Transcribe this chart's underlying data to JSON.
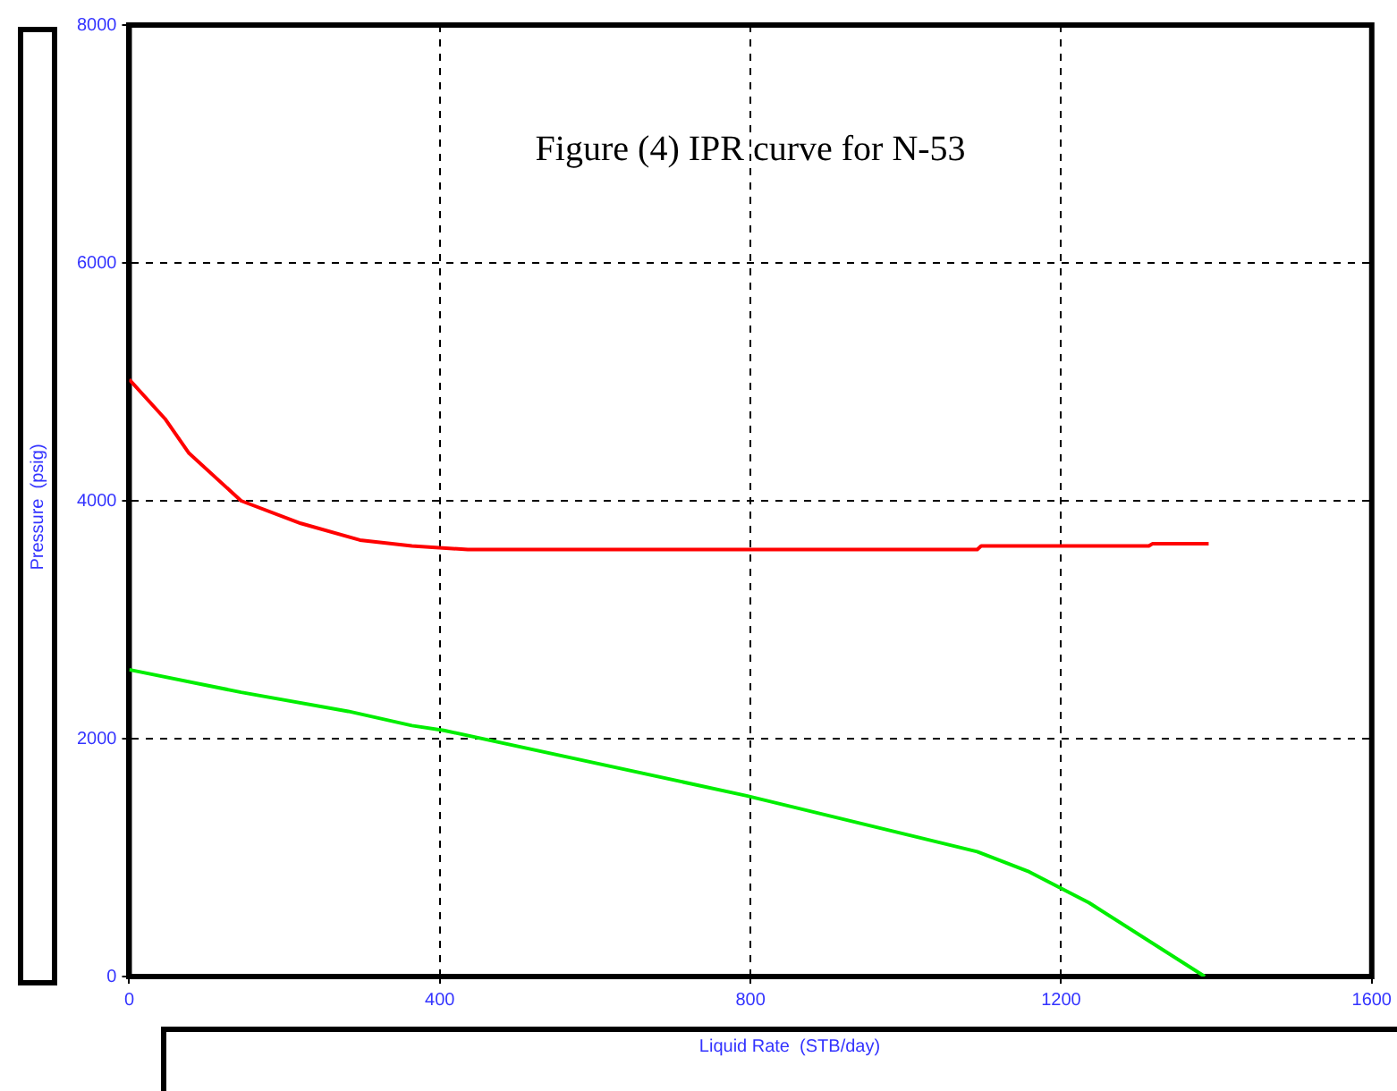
{
  "chart_data": {
    "type": "line",
    "title": "Figure (4) IPR curve for N-53",
    "xlabel": "Liquid Rate  (STB/day)",
    "ylabel": "Pressure  (psig)",
    "xlim": [
      0,
      1600
    ],
    "xticks": [
      0,
      400,
      800,
      1200,
      1600
    ],
    "ylim": [
      0,
      8000
    ],
    "yticks": [
      0,
      2000,
      4000,
      6000,
      8000
    ],
    "grid": true,
    "legend": false,
    "marker": "none",
    "line_style": "solid",
    "series": [
      {
        "color": "#ff0000",
        "x": [
          0,
          46,
          77,
          144,
          221,
          297,
          364,
          436,
          1092,
          1097,
          1313,
          1318,
          1390
        ],
        "values": [
          5020,
          4690,
          4400,
          4000,
          3810,
          3670,
          3620,
          3590,
          3590,
          3620,
          3620,
          3640,
          3640
        ]
      },
      {
        "color": "#00ee00",
        "x": [
          0,
          144,
          282,
          364,
          405,
          795,
          1092,
          1159,
          1236,
          1385
        ],
        "values": [
          2580,
          2390,
          2230,
          2110,
          2070,
          1520,
          1050,
          880,
          620,
          0
        ]
      }
    ]
  }
}
